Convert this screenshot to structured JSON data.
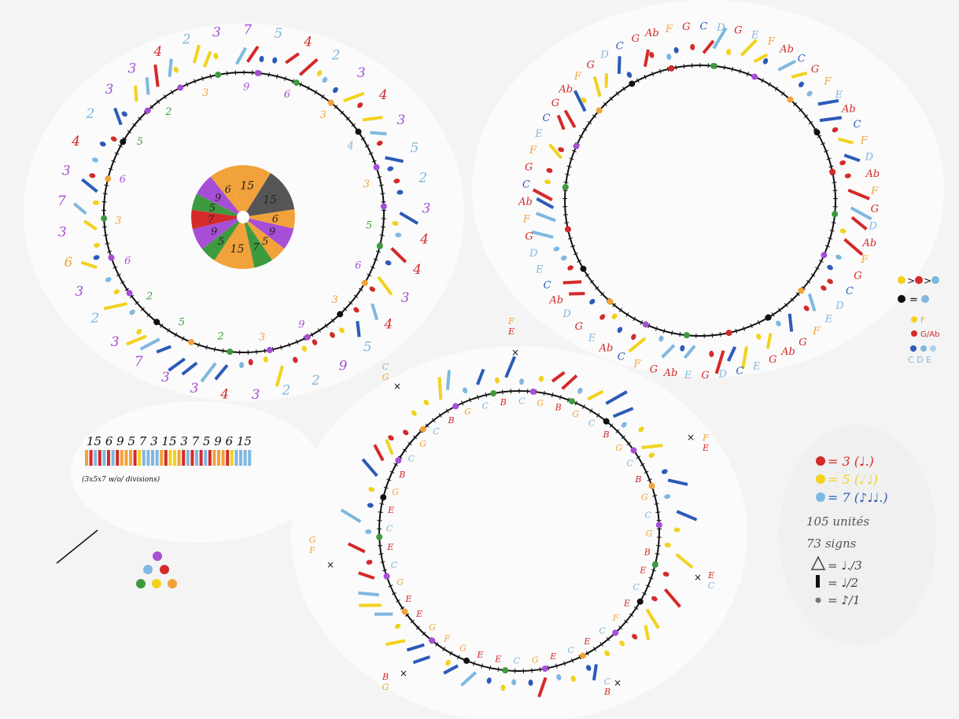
{
  "circle1": {
    "outer_labels": [
      "7",
      "5",
      "4",
      "2",
      "3",
      "4",
      "3",
      "5",
      "2",
      "3",
      "4",
      "4",
      "3",
      "4",
      "5",
      "9",
      "2",
      "2",
      "3",
      "4",
      "3",
      "3",
      "7",
      "3",
      "2",
      "3",
      "6",
      "3",
      "7",
      "3",
      "4",
      "2",
      "3",
      "3",
      "4",
      "2",
      "3"
    ],
    "inner_labels": [
      "9",
      "6",
      "3",
      "4",
      "3",
      "5",
      "6",
      "3",
      "9",
      "3",
      "2",
      "5",
      "2",
      "6",
      "3",
      "6",
      "5",
      "2",
      "3"
    ],
    "top_numbers": [
      "7",
      "9"
    ],
    "right_numbers": [
      "5",
      "3"
    ],
    "bottom_numbers": [
      "3",
      "3"
    ]
  },
  "pie": {
    "slices": [
      "15",
      "15",
      "6",
      "9",
      "5",
      "7",
      "15",
      "5",
      "9",
      "7",
      "5",
      "9",
      "6"
    ]
  },
  "sequence": {
    "digits": "15 6 9 5 7 3 15 3 7 5 9 6 15",
    "caption": "(3x5x7 w/o/ divisions)"
  },
  "circle2": {
    "labels": [
      "C",
      "D",
      "G",
      "E",
      "F",
      "Ab",
      "C",
      "G",
      "F",
      "E",
      "Ab",
      "C",
      "F",
      "D",
      "Ab",
      "F",
      "G",
      "D",
      "Ab",
      "F",
      "G",
      "C",
      "D",
      "E",
      "F",
      "G",
      "Ab",
      "G",
      "E",
      "C",
      "D",
      "G",
      "E",
      "Ab",
      "G",
      "F",
      "C",
      "Ab",
      "E",
      "G",
      "D",
      "Ab",
      "C",
      "E",
      "D",
      "G",
      "F",
      "Ab",
      "C",
      "G",
      "F",
      "E",
      "C",
      "G",
      "Ab",
      "F",
      "G",
      "D",
      "C",
      "G",
      "Ab",
      "F",
      "G"
    ]
  },
  "circle3": {
    "labels": [
      "C",
      "G",
      "B",
      "G",
      "C",
      "B",
      "G",
      "C",
      "B",
      "G",
      "C",
      "G",
      "B",
      "E",
      "C",
      "E",
      "F",
      "C",
      "E",
      "C",
      "E",
      "G",
      "C",
      "E",
      "E",
      "G",
      "F",
      "G",
      "E",
      "E",
      "G",
      "C",
      "E",
      "C",
      "E",
      "G",
      "B",
      "C",
      "G",
      "C",
      "B",
      "G",
      "C",
      "B"
    ],
    "x_labels": [
      "F",
      "E",
      "C",
      "G",
      "F",
      "E",
      "G",
      "F",
      "E",
      "C",
      "B",
      "G",
      "C",
      "B",
      "G",
      "B",
      "G"
    ]
  },
  "legend_right": {
    "line1": "> >",
    "line2": "=",
    "note_F": "F",
    "note_GAb": "G/Ab",
    "note_CDE": "C D E"
  },
  "legend_bottom": {
    "red": "= 3 (♩.)",
    "yellow": "= 5 (𝅗𝅥 ♩)",
    "blue": "= 7 (♪♩♩.)",
    "units": "105 unités",
    "signs": "73 signs",
    "triangle": "= ♩./3",
    "bar": "= ♩/2",
    "dot": "= ♪/1"
  },
  "colors": {
    "red": "#d42a2a",
    "yellow": "#f2d21e",
    "blue": "#7fb8e0",
    "darkblue": "#2c5bb8",
    "orange": "#f2a23a",
    "purple": "#a64fd6",
    "green": "#3e9a3e",
    "black": "#111111",
    "gray": "#555555"
  }
}
